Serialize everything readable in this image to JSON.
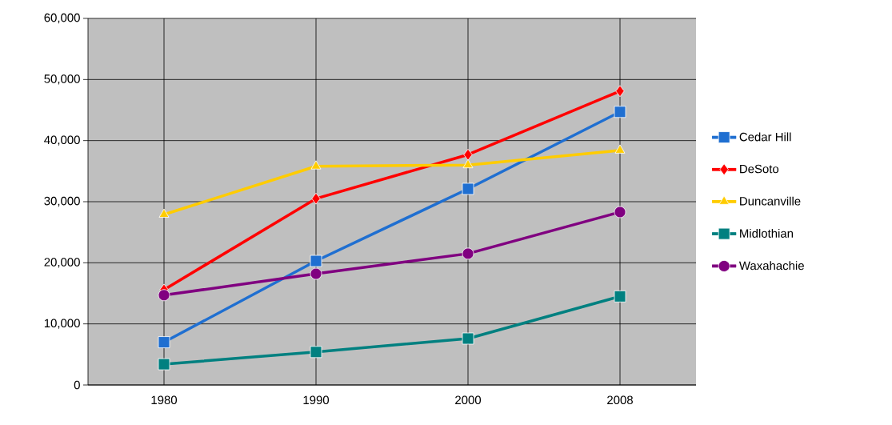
{
  "chart_data": {
    "type": "line",
    "categories": [
      "1980",
      "1990",
      "2000",
      "2008"
    ],
    "series": [
      {
        "name": "Cedar Hill",
        "color": "#1f6fd1",
        "marker": "square",
        "values": [
          7000,
          20300,
          32100,
          44700
        ]
      },
      {
        "name": "DeSoto",
        "color": "#ff0000",
        "marker": "diamond",
        "values": [
          15600,
          30500,
          37700,
          48100
        ]
      },
      {
        "name": "Duncanville",
        "color": "#ffcc00",
        "marker": "triangle",
        "values": [
          27900,
          35800,
          36000,
          38400
        ]
      },
      {
        "name": "Midlothian",
        "color": "#008080",
        "marker": "square",
        "values": [
          3400,
          5400,
          7600,
          14500
        ]
      },
      {
        "name": "Waxahachie",
        "color": "#800080",
        "marker": "circle",
        "values": [
          14700,
          18200,
          21500,
          28300
        ]
      }
    ],
    "ylim": [
      0,
      60000
    ],
    "yticks": [
      {
        "value": 0,
        "label": "0"
      },
      {
        "value": 10000,
        "label": "10,000"
      },
      {
        "value": 20000,
        "label": "20,000"
      },
      {
        "value": 30000,
        "label": "30,000"
      },
      {
        "value": 40000,
        "label": "40,000"
      },
      {
        "value": 50000,
        "label": "50,000"
      },
      {
        "value": 60000,
        "label": "60,000"
      }
    ],
    "grid": true,
    "legend": "right",
    "line_style": "solid"
  }
}
